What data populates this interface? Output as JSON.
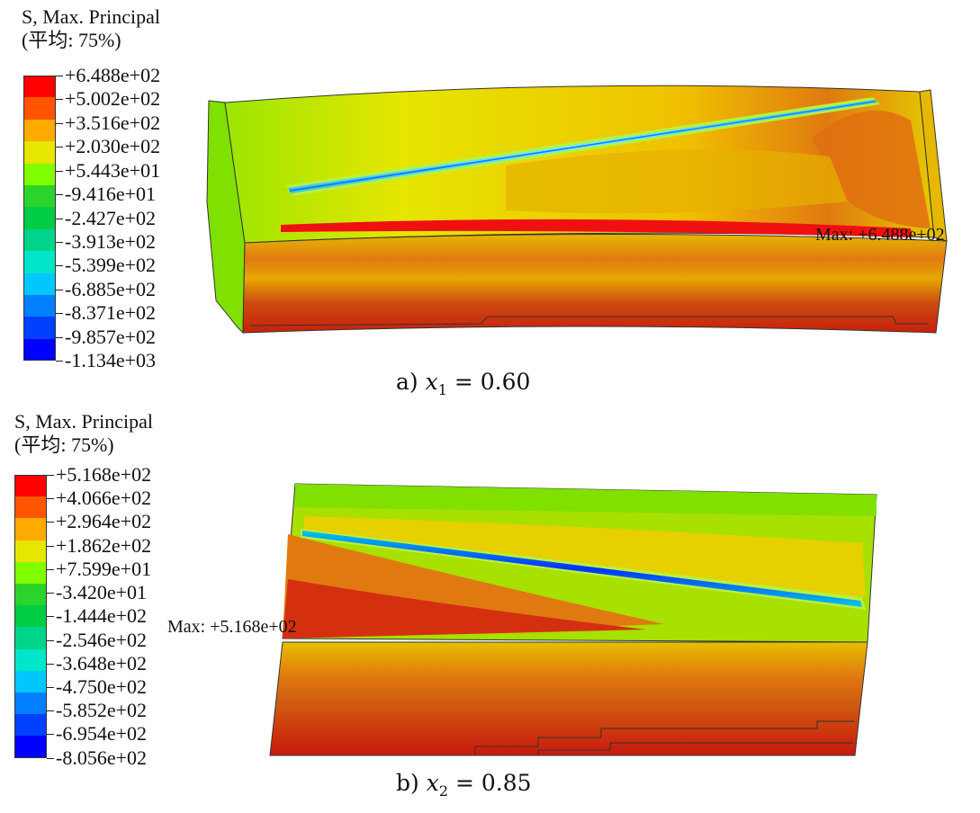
{
  "panels": [
    {
      "id": "a",
      "title_line1": "S, Max. Principal",
      "title_line2": "(平均: 75%)",
      "legend_labels": [
        "+6.488e+02",
        "+5.002e+02",
        "+3.516e+02",
        "+2.030e+02",
        "+5.443e+01",
        "-9.416e+01",
        "-2.427e+02",
        "-3.913e+02",
        "-5.399e+02",
        "-6.885e+02",
        "-8.371e+02",
        "-9.857e+02",
        "-1.134e+03"
      ],
      "legend_colors": [
        "#ff0000",
        "#ff5500",
        "#ffaa00",
        "#e6e600",
        "#80ff00",
        "#2bd42b",
        "#00cc44",
        "#00d48a",
        "#00e6c8",
        "#00c8ff",
        "#0080ff",
        "#0040ff",
        "#0000ff"
      ],
      "max_label": "Max: +6.488e+02",
      "caption_prefix": "a)",
      "caption_var": "x",
      "caption_sub": "1",
      "caption_value": "= 0.60"
    },
    {
      "id": "b",
      "title_line1": "S, Max. Principal",
      "title_line2": "(平均: 75%)",
      "legend_labels": [
        "+5.168e+02",
        "+4.066e+02",
        "+2.964e+02",
        "+1.862e+02",
        "+7.599e+01",
        "-3.420e+01",
        "-1.444e+02",
        "-2.546e+02",
        "-3.648e+02",
        "-4.750e+02",
        "-5.852e+02",
        "-6.954e+02",
        "-8.056e+02"
      ],
      "legend_colors": [
        "#ff0000",
        "#ff5500",
        "#ffaa00",
        "#e6e600",
        "#80ff00",
        "#2bd42b",
        "#00cc44",
        "#00d48a",
        "#00e6c8",
        "#00c8ff",
        "#0080ff",
        "#0040ff",
        "#0000ff"
      ],
      "max_label": "Max: +5.168e+02",
      "caption_prefix": "b)",
      "caption_var": "x",
      "caption_sub": "2",
      "caption_value": "= 0.85"
    }
  ]
}
